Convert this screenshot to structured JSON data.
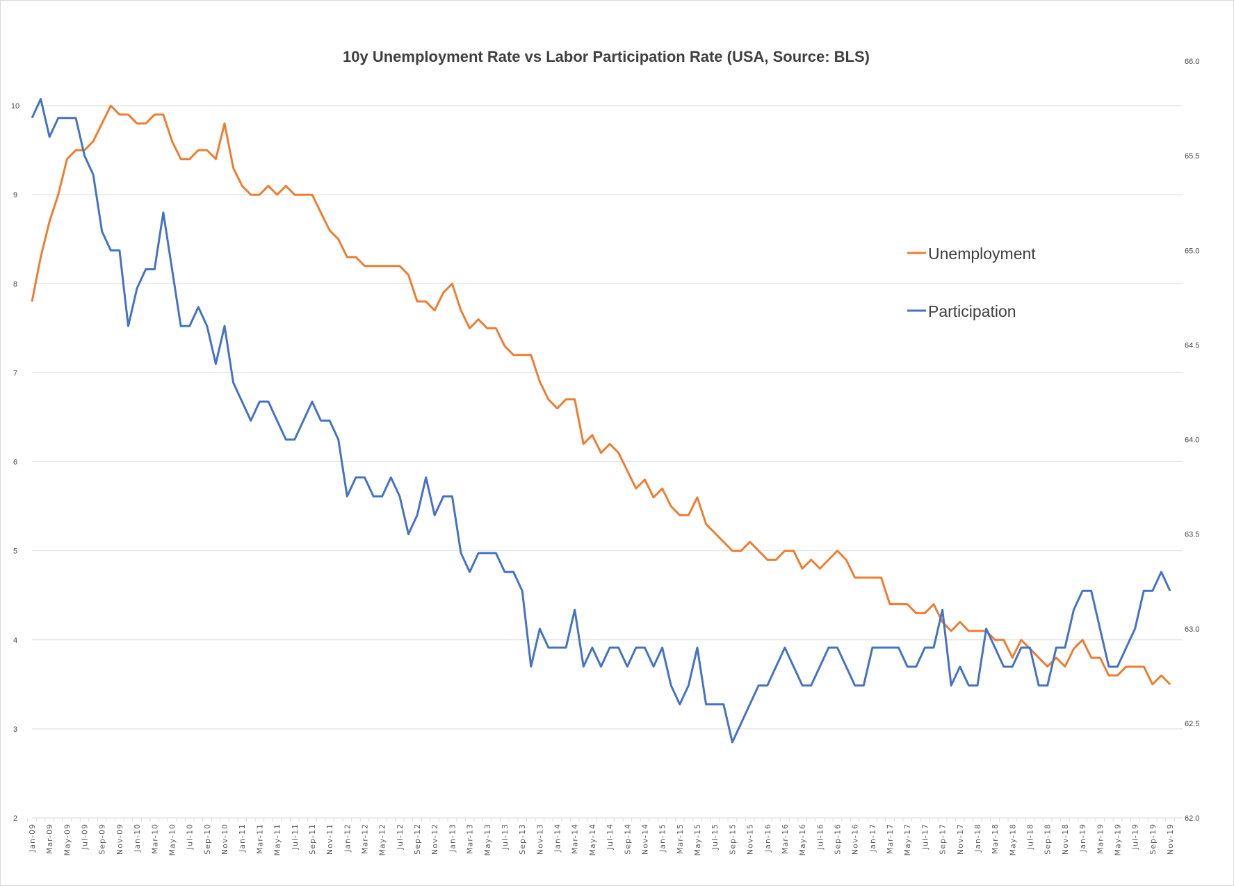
{
  "chart_data": {
    "type": "line",
    "title": "10y Unemployment Rate vs Labor Participation Rate (USA, Source: BLS)",
    "xlabel": "",
    "ylabel": "",
    "y_left": {
      "min": 2,
      "max": 10.5,
      "ticks": [
        "2",
        "3",
        "4",
        "5",
        "6",
        "7",
        "8",
        "9",
        "10"
      ]
    },
    "y_right": {
      "min": 62.0,
      "max": 66.0,
      "ticks": [
        "62.0",
        "62.5",
        "63.0",
        "63.5",
        "64.0",
        "64.5",
        "65.0",
        "65.5",
        "66.0"
      ]
    },
    "grid": true,
    "legend_position": "right",
    "x_start": "Jan-09",
    "x_end": "Nov-19",
    "x_tick_labels": [
      "Jan-09",
      "Mar-09",
      "May-09",
      "Jul-09",
      "Sep-09",
      "Nov-09",
      "Jan-10",
      "Mar-10",
      "May-10",
      "Jul-10",
      "Sep-10",
      "Nov-10",
      "Jan-11",
      "Mar-11",
      "May-11",
      "Jul-11",
      "Sep-11",
      "Nov-11",
      "Jan-12",
      "Mar-12",
      "May-12",
      "Jul-12",
      "Sep-12",
      "Nov-12",
      "Jan-13",
      "Mar-13",
      "May-13",
      "Jul-13",
      "Sep-13",
      "Nov-13",
      "Jan-14",
      "Mar-14",
      "May-14",
      "Jul-14",
      "Sep-14",
      "Nov-14",
      "Jan-15",
      "Mar-15",
      "May-15",
      "Jul-15",
      "Sep-15",
      "Nov-15",
      "Jan-16",
      "Mar-16",
      "May-16",
      "Jul-16",
      "Sep-16",
      "Nov-16",
      "Jan-17",
      "Mar-17",
      "May-17",
      "Jul-17",
      "Sep-17",
      "Nov-17",
      "Jan-18",
      "Mar-18",
      "May-18",
      "Jul-18",
      "Sep-18",
      "Nov-18",
      "Jan-19",
      "Mar-19",
      "May-19",
      "Jul-19",
      "Sep-19",
      "Nov-19"
    ],
    "series": [
      {
        "name": "Unemployment",
        "axis": "left",
        "color": "#ED7D31",
        "values": [
          7.8,
          8.3,
          8.7,
          9.0,
          9.4,
          9.5,
          9.5,
          9.6,
          9.8,
          10.0,
          9.9,
          9.9,
          9.8,
          9.8,
          9.9,
          9.9,
          9.6,
          9.4,
          9.4,
          9.5,
          9.5,
          9.4,
          9.8,
          9.3,
          9.1,
          9.0,
          9.0,
          9.1,
          9.0,
          9.1,
          9.0,
          9.0,
          9.0,
          8.8,
          8.6,
          8.5,
          8.3,
          8.3,
          8.2,
          8.2,
          8.2,
          8.2,
          8.2,
          8.1,
          7.8,
          7.8,
          7.7,
          7.9,
          8.0,
          7.7,
          7.5,
          7.6,
          7.5,
          7.5,
          7.3,
          7.2,
          7.2,
          7.2,
          6.9,
          6.7,
          6.6,
          6.7,
          6.7,
          6.2,
          6.3,
          6.1,
          6.2,
          6.1,
          5.9,
          5.7,
          5.8,
          5.6,
          5.7,
          5.5,
          5.4,
          5.4,
          5.6,
          5.3,
          5.2,
          5.1,
          5.0,
          5.0,
          5.1,
          5.0,
          4.9,
          4.9,
          5.0,
          5.0,
          4.8,
          4.9,
          4.8,
          4.9,
          5.0,
          4.9,
          4.7,
          4.7,
          4.7,
          4.7,
          4.4,
          4.4,
          4.4,
          4.3,
          4.3,
          4.4,
          4.2,
          4.1,
          4.2,
          4.1,
          4.1,
          4.1,
          4.0,
          4.0,
          3.8,
          4.0,
          3.9,
          3.8,
          3.7,
          3.8,
          3.7,
          3.9,
          4.0,
          3.8,
          3.8,
          3.6,
          3.6,
          3.7,
          3.7,
          3.7,
          3.5,
          3.6,
          3.5
        ]
      },
      {
        "name": "Participation",
        "axis": "right",
        "color": "#4472C4",
        "values": [
          65.7,
          65.8,
          65.6,
          65.7,
          65.7,
          65.7,
          65.5,
          65.4,
          65.1,
          65.0,
          65.0,
          64.6,
          64.8,
          64.9,
          64.9,
          65.2,
          64.9,
          64.6,
          64.6,
          64.7,
          64.6,
          64.4,
          64.6,
          64.3,
          64.2,
          64.1,
          64.2,
          64.2,
          64.1,
          64.0,
          64.0,
          64.1,
          64.2,
          64.1,
          64.1,
          64.0,
          63.7,
          63.8,
          63.8,
          63.7,
          63.7,
          63.8,
          63.7,
          63.5,
          63.6,
          63.8,
          63.6,
          63.7,
          63.7,
          63.4,
          63.3,
          63.4,
          63.4,
          63.4,
          63.3,
          63.3,
          63.2,
          62.8,
          63.0,
          62.9,
          62.9,
          62.9,
          63.1,
          62.8,
          62.9,
          62.8,
          62.9,
          62.9,
          62.8,
          62.9,
          62.9,
          62.8,
          62.9,
          62.7,
          62.6,
          62.7,
          62.9,
          62.6,
          62.6,
          62.6,
          62.4,
          62.5,
          62.6,
          62.7,
          62.7,
          62.8,
          62.9,
          62.8,
          62.7,
          62.7,
          62.8,
          62.9,
          62.9,
          62.8,
          62.7,
          62.7,
          62.9,
          62.9,
          62.9,
          62.9,
          62.8,
          62.8,
          62.9,
          62.9,
          63.1,
          62.7,
          62.8,
          62.7,
          62.7,
          63.0,
          62.9,
          62.8,
          62.8,
          62.9,
          62.9,
          62.7,
          62.7,
          62.9,
          62.9,
          63.1,
          63.2,
          63.2,
          63.0,
          62.8,
          62.8,
          62.9,
          63.0,
          63.2,
          63.2,
          63.3,
          63.2
        ]
      }
    ]
  }
}
